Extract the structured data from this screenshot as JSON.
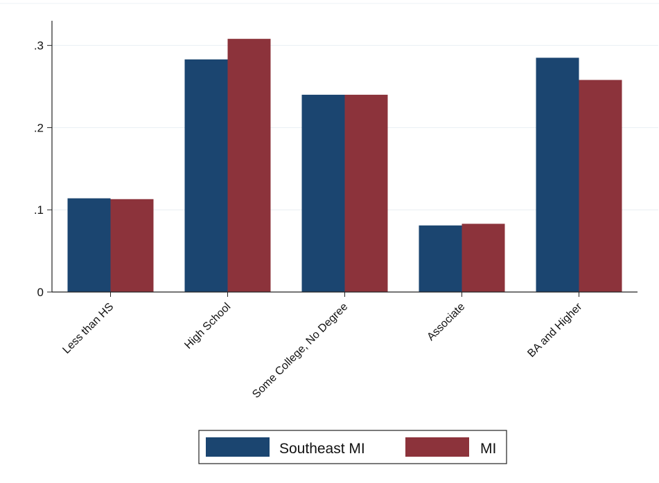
{
  "chart_data": {
    "type": "bar",
    "title": "",
    "xlabel": "",
    "ylabel": "",
    "categories": [
      "Less than HS",
      "High School",
      "Some College, No Degree",
      "Associate",
      "BA and Higher"
    ],
    "series": [
      {
        "name": "Southeast MI",
        "color": "#1b4570",
        "values": [
          0.114,
          0.283,
          0.24,
          0.081,
          0.285
        ]
      },
      {
        "name": "MI",
        "color": "#8c333b",
        "values": [
          0.113,
          0.308,
          0.24,
          0.083,
          0.258
        ]
      }
    ],
    "ylim": [
      0,
      0.33
    ],
    "yticks": [
      {
        "value": 0,
        "label": "0"
      },
      {
        "value": 0.1,
        "label": ".1"
      },
      {
        "value": 0.2,
        "label": ".2"
      },
      {
        "value": 0.3,
        "label": ".3"
      }
    ],
    "grid": true,
    "legend_position": "bottom"
  }
}
